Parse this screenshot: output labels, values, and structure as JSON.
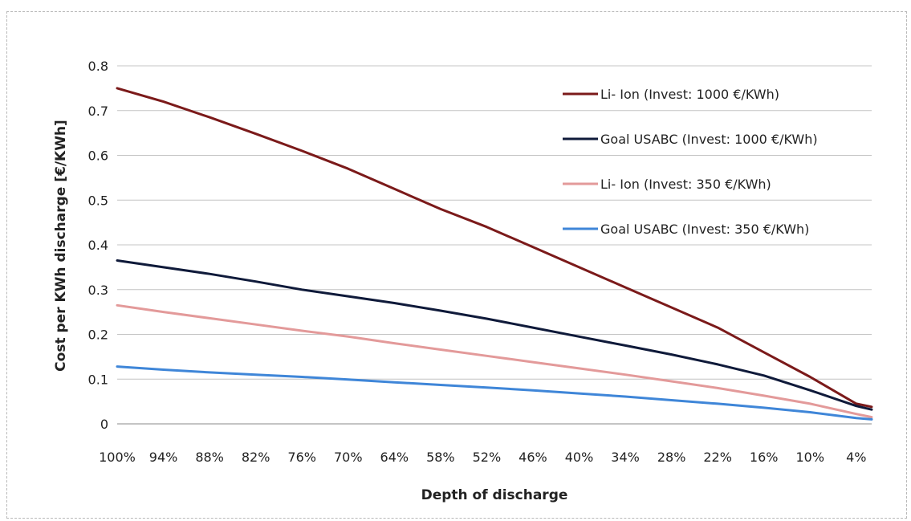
{
  "chart_data": {
    "type": "line",
    "title": "",
    "xlabel": "Depth of discharge",
    "ylabel": "Cost per KWh discharge [€/KWh]",
    "x": [
      "100%",
      "94%",
      "88%",
      "82%",
      "76%",
      "70%",
      "64%",
      "58%",
      "52%",
      "46%",
      "40%",
      "34%",
      "28%",
      "22%",
      "16%",
      "10%",
      "4%"
    ],
    "x_values": [
      100,
      94,
      88,
      82,
      76,
      70,
      64,
      58,
      52,
      46,
      40,
      34,
      28,
      22,
      16,
      10,
      4
    ],
    "x_end": 2,
    "ylim": [
      0,
      0.8
    ],
    "yticks": [
      "0",
      "0.1",
      "0.2",
      "0.3",
      "0.4",
      "0.5",
      "0.6",
      "0.7",
      "0.8"
    ],
    "ytick_values": [
      0,
      0.1,
      0.2,
      0.3,
      0.4,
      0.5,
      0.6,
      0.7,
      0.8
    ],
    "grid": true,
    "legend_position": "top-right",
    "series": [
      {
        "name": "Li- Ion (Invest: 1000 €/KWh)",
        "color": "#7b1a1a",
        "x": [
          100,
          94,
          88,
          82,
          76,
          70,
          64,
          58,
          52,
          46,
          40,
          34,
          28,
          22,
          16,
          10,
          4,
          2
        ],
        "values": [
          0.75,
          0.72,
          0.685,
          0.648,
          0.61,
          0.57,
          0.525,
          0.48,
          0.44,
          0.395,
          0.35,
          0.305,
          0.26,
          0.215,
          0.16,
          0.105,
          0.045,
          0.038
        ]
      },
      {
        "name": "Goal USABC (Invest: 1000 €/KWh)",
        "color": "#0f1a3a",
        "x": [
          100,
          94,
          88,
          82,
          76,
          70,
          64,
          58,
          52,
          46,
          40,
          34,
          28,
          22,
          16,
          10,
          4,
          2
        ],
        "values": [
          0.365,
          0.35,
          0.335,
          0.318,
          0.3,
          0.285,
          0.27,
          0.253,
          0.235,
          0.215,
          0.195,
          0.175,
          0.155,
          0.133,
          0.108,
          0.075,
          0.04,
          0.032
        ]
      },
      {
        "name": "Li- Ion (Invest: 350 €/KWh)",
        "color": "#e39a9a",
        "x": [
          100,
          94,
          88,
          82,
          76,
          70,
          64,
          58,
          52,
          46,
          40,
          34,
          28,
          22,
          16,
          10,
          4,
          2
        ],
        "values": [
          0.265,
          0.25,
          0.236,
          0.222,
          0.208,
          0.195,
          0.18,
          0.166,
          0.152,
          0.138,
          0.124,
          0.11,
          0.095,
          0.08,
          0.063,
          0.045,
          0.022,
          0.015
        ]
      },
      {
        "name": "Goal USABC (Invest: 350 €/KWh)",
        "color": "#3f86d8",
        "x": [
          100,
          94,
          88,
          82,
          76,
          70,
          64,
          58,
          52,
          46,
          40,
          34,
          28,
          22,
          16,
          10,
          4,
          2
        ],
        "values": [
          0.128,
          0.121,
          0.115,
          0.11,
          0.105,
          0.099,
          0.093,
          0.087,
          0.081,
          0.075,
          0.068,
          0.061,
          0.053,
          0.045,
          0.036,
          0.026,
          0.013,
          0.01
        ]
      }
    ]
  }
}
